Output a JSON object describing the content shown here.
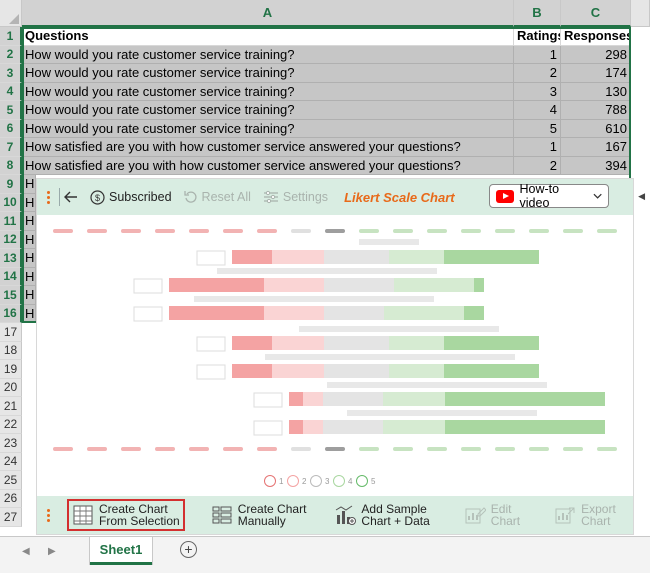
{
  "spreadsheet": {
    "columns": [
      "A",
      "B",
      "C"
    ],
    "row_numbers": [
      "1",
      "2",
      "3",
      "4",
      "5",
      "6",
      "7",
      "8",
      "9",
      "10",
      "11",
      "12",
      "13",
      "14",
      "15",
      "16",
      "17",
      "18",
      "19",
      "20",
      "21",
      "22",
      "23",
      "24",
      "25",
      "26",
      "27"
    ],
    "header": [
      "Questions",
      "Ratings",
      "Responses"
    ],
    "rows": [
      [
        "How would you rate customer service training?",
        "1",
        "298"
      ],
      [
        "How would you rate customer service training?",
        "2",
        "174"
      ],
      [
        "How would you rate customer service training?",
        "3",
        "130"
      ],
      [
        "How would you rate customer service training?",
        "4",
        "788"
      ],
      [
        "How would you rate customer service training?",
        "5",
        "610"
      ],
      [
        "How satisfied are you with how customer service answered your questions?",
        "1",
        "167"
      ],
      [
        "How satisfied are you with how customer service answered your questions?",
        "2",
        "394"
      ]
    ],
    "partial_rows": [
      "H",
      "H",
      "H",
      "H",
      "H",
      "H",
      "H",
      "H"
    ]
  },
  "panel": {
    "subscribed_label": "Subscribed",
    "reset_label": "Reset All",
    "settings_label": "Settings",
    "title": "Likert Scale Chart",
    "howto_label": "How-to video",
    "legend": [
      "1",
      "2",
      "3",
      "4",
      "5"
    ],
    "buttons": {
      "create_selection": [
        "Create Chart",
        "From Selection"
      ],
      "create_manual": [
        "Create Chart",
        "Manually"
      ],
      "add_sample": [
        "Add Sample",
        "Chart + Data"
      ],
      "edit": [
        "Edit",
        "Chart"
      ],
      "export": [
        "Export",
        "Chart"
      ]
    }
  },
  "sheet_tab": "Sheet1",
  "colors": {
    "excel_green": "#217346",
    "panel_bg": "#d9ede2",
    "accent_orange": "#e86a1a",
    "neg_strong": "#f4a3a3",
    "neg_light": "#fad4d4",
    "neutral": "#e4e4e4",
    "pos_light": "#d6ebd2",
    "pos_strong": "#a9d7a0"
  }
}
